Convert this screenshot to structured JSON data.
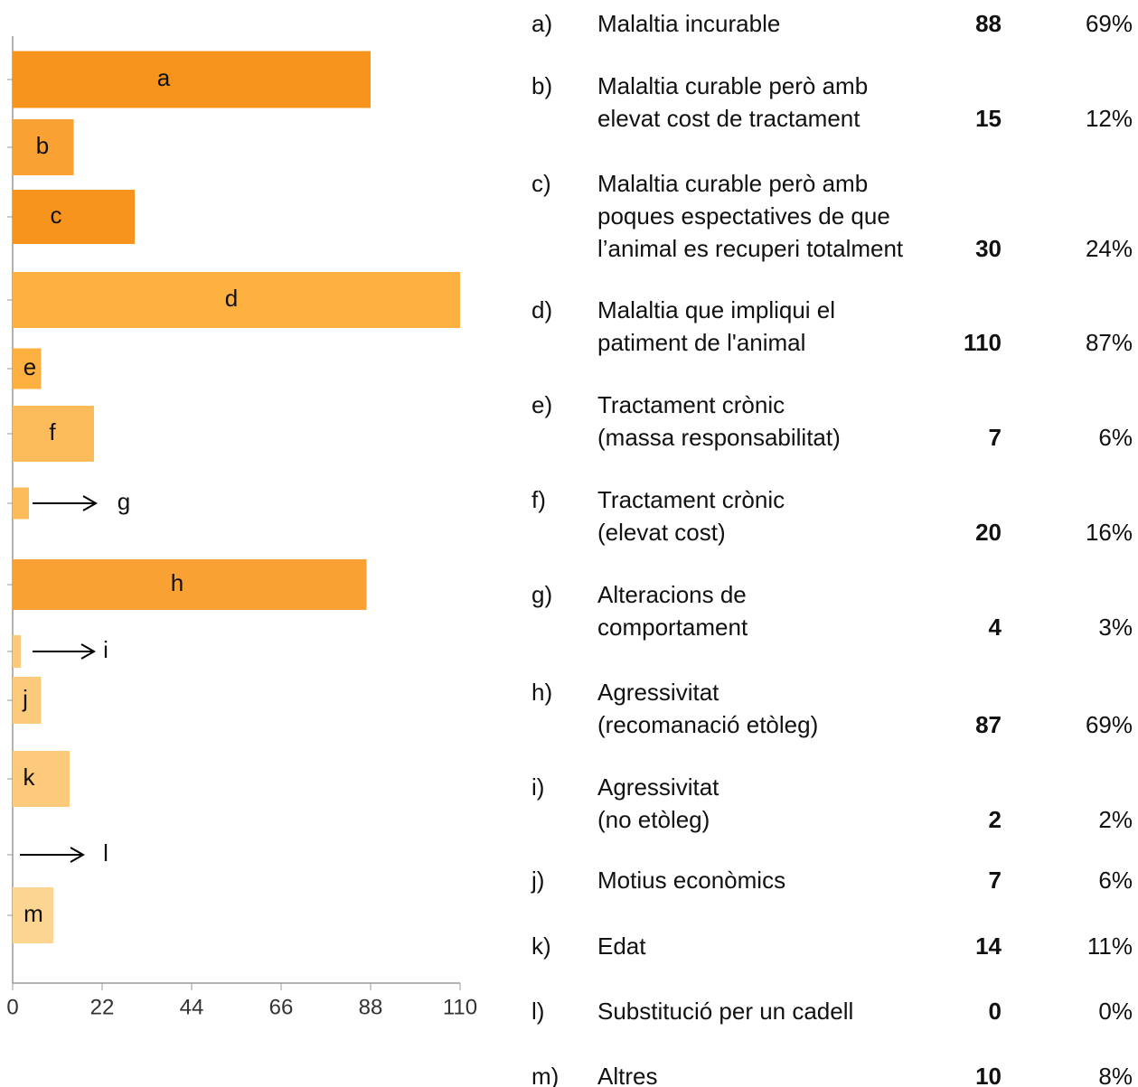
{
  "chart_data": {
    "type": "bar",
    "orientation": "horizontal",
    "categories": [
      "a",
      "b",
      "c",
      "d",
      "e",
      "f",
      "g",
      "h",
      "i",
      "j",
      "k",
      "l",
      "m"
    ],
    "values": [
      88,
      15,
      30,
      110,
      7,
      20,
      4,
      87,
      2,
      7,
      14,
      0,
      10
    ],
    "colors": [
      "#f7941d",
      "#f9a233",
      "#f7941d",
      "#fbb040",
      "#fbb040",
      "#fcbc5c",
      "#fcbc5c",
      "#f9a233",
      "#fdc97a",
      "#fdc97a",
      "#fdc97a",
      "#fdc97a",
      "#fdd592"
    ],
    "xlim": [
      0,
      110
    ],
    "xticks": [
      0,
      22,
      44,
      66,
      88,
      110
    ]
  },
  "table": {
    "rows": [
      {
        "letter": "a)",
        "lines": [
          "Malaltia incurable"
        ],
        "percent": "69%"
      },
      {
        "letter": "b)",
        "lines": [
          "Malaltia curable però amb",
          "elevat cost de tractament"
        ],
        "percent": "12%"
      },
      {
        "letter": "c)",
        "lines": [
          "Malaltia curable però amb",
          "poques espectatives de que",
          "l’animal es recuperi totalment"
        ],
        "percent": "24%"
      },
      {
        "letter": "d)",
        "lines": [
          "Malaltia que impliqui el",
          "patiment de l'animal"
        ],
        "percent": "87%"
      },
      {
        "letter": "e)",
        "lines": [
          "Tractament crònic",
          "(massa responsabilitat)"
        ],
        "percent": "6%"
      },
      {
        "letter": "f)",
        "lines": [
          "Tractament crònic",
          "(elevat cost)"
        ],
        "percent": "16%"
      },
      {
        "letter": "g)",
        "lines": [
          "Alteracions de",
          "comportament"
        ],
        "percent": "3%"
      },
      {
        "letter": "h)",
        "lines": [
          "Agressivitat",
          "(recomanació etòleg)"
        ],
        "percent": "69%"
      },
      {
        "letter": "i)",
        "lines": [
          "Agressivitat",
          "(no etòleg)"
        ],
        "percent": "2%"
      },
      {
        "letter": "j)",
        "lines": [
          "Motius econòmics"
        ],
        "percent": "6%"
      },
      {
        "letter": "k)",
        "lines": [
          "Edat"
        ],
        "percent": "11%"
      },
      {
        "letter": "l)",
        "lines": [
          "Substitució per un cadell"
        ],
        "percent": "0%"
      },
      {
        "letter": "m)",
        "lines": [
          "Altres"
        ],
        "percent": "8%"
      }
    ]
  }
}
